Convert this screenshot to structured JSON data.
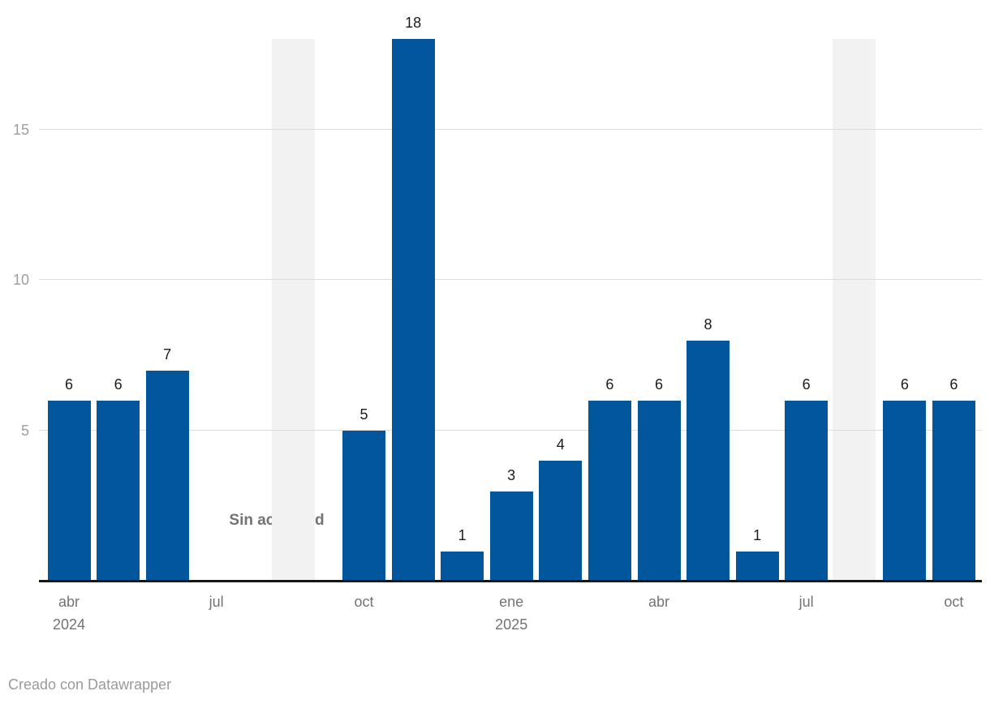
{
  "chart_data": {
    "type": "bar",
    "title": "",
    "categories": [
      "abr 2024",
      "may 2024",
      "jun 2024",
      "jul 2024",
      "ago 2024",
      "sep 2024",
      "oct 2024",
      "nov 2024",
      "dic 2024",
      "ene 2025",
      "feb 2025",
      "mar 2025",
      "abr 2025",
      "may 2025",
      "jun 2025",
      "jul 2025",
      "ago 2025",
      "sep 2025",
      "oct 2025"
    ],
    "values": [
      6,
      6,
      7,
      0,
      0,
      0,
      5,
      18,
      1,
      3,
      4,
      6,
      6,
      8,
      1,
      6,
      0,
      6,
      6
    ],
    "ylim": [
      0,
      18
    ],
    "yticks": [
      5,
      10,
      15
    ],
    "grid": true,
    "legend": "none",
    "x_tick_labels": [
      {
        "index": 0,
        "label": "abr",
        "year": "2024"
      },
      {
        "index": 3,
        "label": "jul"
      },
      {
        "index": 6,
        "label": "oct"
      },
      {
        "index": 9,
        "label": "ene",
        "year": "2025"
      },
      {
        "index": 12,
        "label": "abr"
      },
      {
        "index": 15,
        "label": "jul"
      },
      {
        "index": 18,
        "label": "oct"
      }
    ],
    "annotation": {
      "text": "Sin actividad"
    },
    "highlight_bands": [
      {
        "from_index": 4.12,
        "to_index": 5.01
      },
      {
        "from_index": 15.53,
        "to_index": 16.41
      }
    ],
    "colors": {
      "bar": "#02569b",
      "band": "#f2f2f2",
      "gridline": "#dcdcdc",
      "axis_line": "#161616",
      "y_tick_label": "#9e9e9e",
      "x_tick_label": "#737373",
      "value_label": "#1c1c1c",
      "annotation": "#737373",
      "attribution": "#9a9a9a"
    }
  },
  "footer": {
    "attribution": "Creado con Datawrapper"
  }
}
